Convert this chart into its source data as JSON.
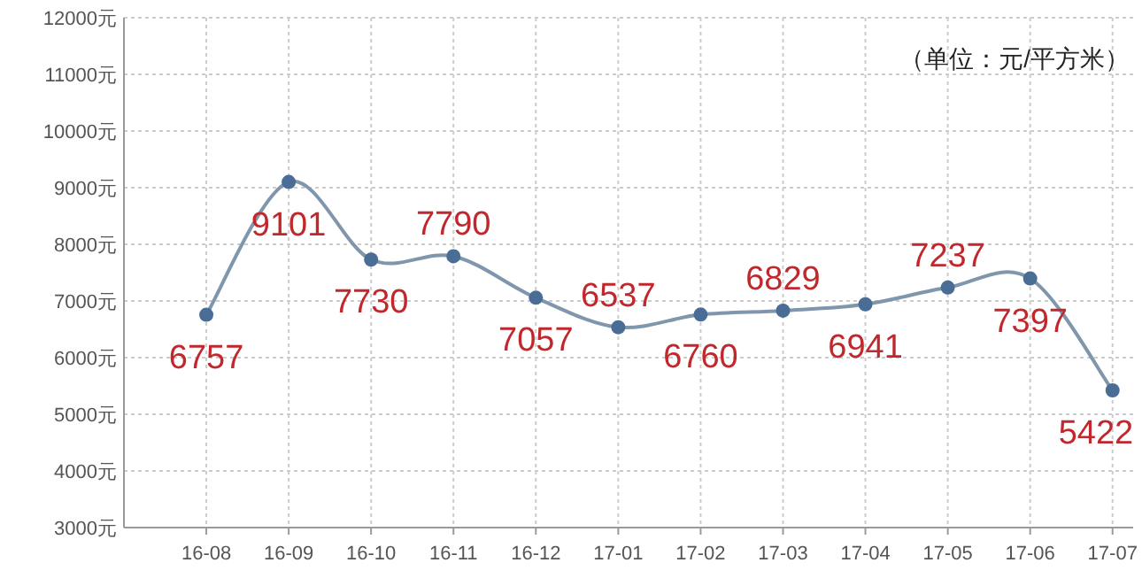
{
  "chart_data": {
    "type": "line",
    "categories": [
      "16-08",
      "16-09",
      "16-10",
      "16-11",
      "16-12",
      "17-01",
      "17-02",
      "17-03",
      "17-04",
      "17-05",
      "17-06",
      "17-07"
    ],
    "series": [
      {
        "color": "#7f96ad",
        "values": [
          6757,
          9101,
          7730,
          7790,
          7057,
          6537,
          6760,
          6829,
          6941,
          7237,
          7397,
          5422
        ]
      }
    ],
    "ylim": [
      3000,
      12000
    ],
    "yticks": [
      {
        "value": 3000,
        "label": "3000元"
      },
      {
        "value": 4000,
        "label": "4000元"
      },
      {
        "value": 5000,
        "label": "5000元"
      },
      {
        "value": 6000,
        "label": "6000元"
      },
      {
        "value": 7000,
        "label": "7000元"
      },
      {
        "value": 8000,
        "label": "8000元"
      },
      {
        "value": 9000,
        "label": "9000元"
      },
      {
        "value": 10000,
        "label": "10000元"
      },
      {
        "value": 11000,
        "label": "11000元"
      },
      {
        "value": 12000,
        "label": "12000元"
      }
    ],
    "annotations": [
      "（单位：元/平方米）"
    ],
    "data_labels": true,
    "grid": true,
    "marker": "circle",
    "line_style": "solid"
  }
}
